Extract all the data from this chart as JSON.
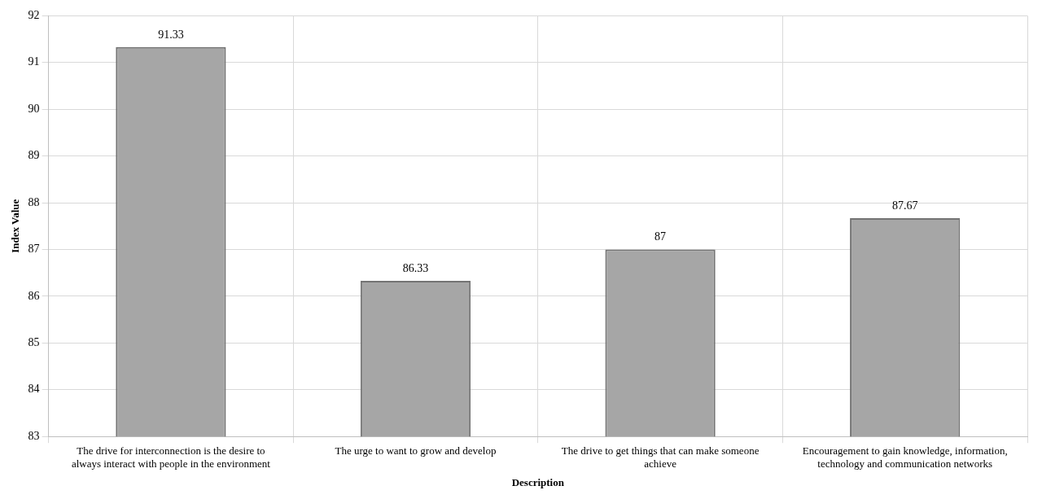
{
  "chart_data": {
    "type": "bar",
    "xlabel": "Description",
    "ylabel": "Index Value",
    "categories": [
      "The drive for interconnection is the desire to always interact with people in the environment",
      "The urge to want to grow and develop",
      "The drive to get things that can make someone achieve",
      "Encouragement to gain knowledge, information, technology and communication networks"
    ],
    "values": [
      91.33,
      86.33,
      87,
      87.67
    ],
    "color": "#a6a6a6",
    "ylim": [
      83,
      92
    ],
    "yticks": [
      83,
      84,
      85,
      86,
      87,
      88,
      89,
      90,
      91,
      92
    ],
    "grid": true,
    "data_labels": true
  }
}
